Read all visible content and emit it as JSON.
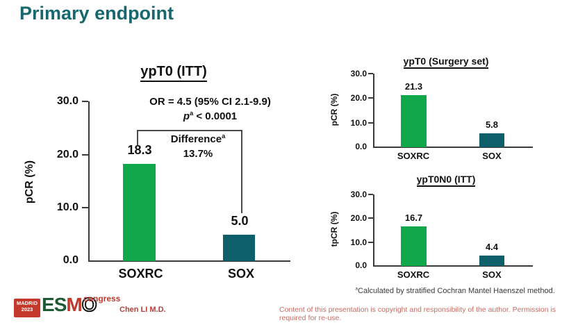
{
  "slide": {
    "title": "Primary endpoint",
    "accent_color": "#17686e"
  },
  "chart_data": [
    {
      "type": "bar",
      "title": "ypT0 (ITT)",
      "ylabel": "pCR (%)",
      "categories": [
        "SOXRC",
        "SOX"
      ],
      "values": [
        18.3,
        5.0
      ],
      "value_labels": [
        "18.3",
        "5.0"
      ],
      "bar_colors": [
        "#10a74b",
        "#0d5f6a"
      ],
      "ylim": [
        0,
        30
      ],
      "ytick_labels": [
        "30.0",
        "20.0",
        "10.0",
        "0.0"
      ],
      "grid": false,
      "annotations": {
        "or_line": "OR = 4.5 (95% CI 2.1-9.9)",
        "p_symbol": "p",
        "p_sup": "a",
        "p_rest": " < 0.0001",
        "difference_label": "Difference",
        "difference_sup": "a",
        "difference_value": "13.7%"
      }
    },
    {
      "type": "bar",
      "title": "ypT0 (Surgery set)",
      "ylabel": "pCR (%)",
      "categories": [
        "SOXRC",
        "SOX"
      ],
      "values": [
        21.3,
        5.8
      ],
      "value_labels": [
        "21.3",
        "5.8"
      ],
      "bar_colors": [
        "#10a74b",
        "#0d5f6a"
      ],
      "ylim": [
        0,
        30
      ],
      "ytick_labels": [
        "30.0",
        "20.0",
        "10.0",
        "0.0"
      ],
      "grid": false
    },
    {
      "type": "bar",
      "title": "ypT0N0 (ITT)",
      "ylabel": "tpCR (%)",
      "categories": [
        "SOXRC",
        "SOX"
      ],
      "values": [
        16.7,
        4.4
      ],
      "value_labels": [
        "16.7",
        "4.4"
      ],
      "bar_colors": [
        "#10a74b",
        "#0d5f6a"
      ],
      "ylim": [
        0,
        30
      ],
      "ytick_labels": [
        "30.0",
        "20.0",
        "10.0",
        "0.0"
      ],
      "grid": false
    }
  ],
  "footnote": {
    "sup": "a",
    "text": "Calculated by stratified Cochran Mantel Haenszel method."
  },
  "footer": {
    "logo": {
      "city": "MADRID",
      "year": "2023",
      "letter_e": "E",
      "letter_s": "S",
      "letter_m": "M",
      "letter_o": "O",
      "congress": "congress"
    },
    "presenter": "Chen LI M.D.",
    "copyright": "Content of this presentation is copyright and responsibility of the author. Permission is required for re-use."
  }
}
